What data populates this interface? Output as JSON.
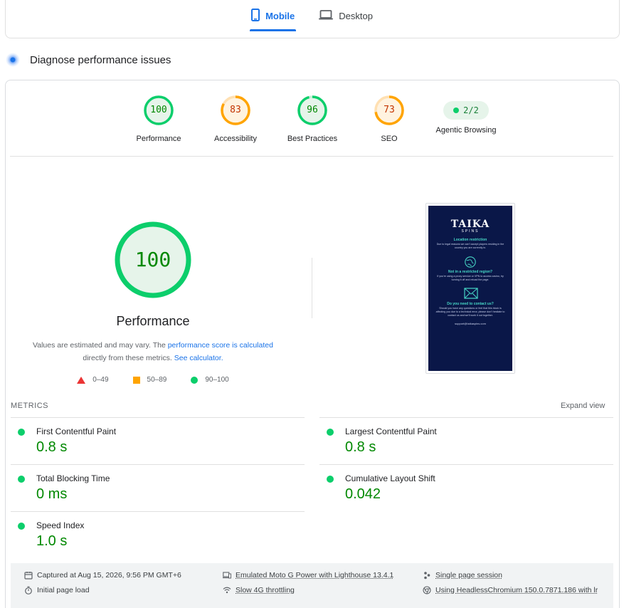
{
  "tabs": [
    {
      "label": "Mobile",
      "icon": "smartphone-icon",
      "active": true
    },
    {
      "label": "Desktop",
      "icon": "laptop-icon",
      "active": false
    }
  ],
  "section": {
    "title": "Diagnose performance issues",
    "icon": "diagnose-icon"
  },
  "categories": [
    {
      "label": "Performance",
      "score": "100",
      "status": "pass",
      "color": "#0cce6b"
    },
    {
      "label": "Accessibility",
      "score": "83",
      "status": "average",
      "color": "#ffa400"
    },
    {
      "label": "Best Practices",
      "score": "96",
      "status": "pass",
      "color": "#0cce6b"
    },
    {
      "label": "SEO",
      "score": "73",
      "status": "average",
      "color": "#ffa400"
    },
    {
      "label": "Agentic Browsing",
      "score": "2/2",
      "status": "pass",
      "color": "#0cce6b"
    }
  ],
  "performance": {
    "score": "100",
    "title": "Performance",
    "note_prefix": "Values are estimated and may vary. The",
    "note_link1": "performance score is calculated",
    "note_middle": "directly from these metrics.",
    "note_link2": "See calculator."
  },
  "legend": [
    {
      "range": "0–49",
      "shape": "triangle",
      "color": "#eb3434"
    },
    {
      "range": "50–89",
      "shape": "square",
      "color": "#ffa400"
    },
    {
      "range": "90–100",
      "shape": "circle",
      "color": "#0cce6b"
    }
  ],
  "screenshot": {
    "logo": "TAIKA",
    "logo_sub": "SPINS",
    "heading1": "Location restriction",
    "text1": "Due to legal reasons we can't accept players residing in the country you are currently in.",
    "heading2": "Not in a restricted region?",
    "text2": "If you're using a proxy service or VPN to access casino, try turning it off and reload the page.",
    "heading3": "Do you need to contact us?",
    "text3": "Should you have any questions or feel that this block is affecting you due to a technical error, please don't hesitate to contact us and we'll work it out together.",
    "email": "support@taikaspins.com"
  },
  "metrics": {
    "label": "METRICS",
    "expand_label": "Expand view",
    "items": [
      {
        "name": "First Contentful Paint",
        "value": "0.8 s"
      },
      {
        "name": "Largest Contentful Paint",
        "value": "0.8 s"
      },
      {
        "name": "Total Blocking Time",
        "value": "0 ms"
      },
      {
        "name": "Cumulative Layout Shift",
        "value": "0.042"
      },
      {
        "name": "Speed Index",
        "value": "1.0 s"
      }
    ]
  },
  "footer": {
    "captured": "Captured at Aug 15, 2026, 9:56 PM GMT+6",
    "load": "Initial page load",
    "device": "Emulated Moto G Power with Lighthouse 13.4.1",
    "throttling": "Slow 4G throttling",
    "session": "Single page session",
    "browser": "Using HeadlessChromium 150.0.7871.186 with lr"
  }
}
